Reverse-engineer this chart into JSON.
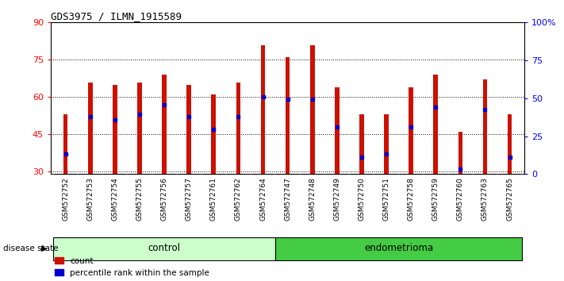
{
  "title": "GDS3975 / ILMN_1915589",
  "samples": [
    "GSM572752",
    "GSM572753",
    "GSM572754",
    "GSM572755",
    "GSM572756",
    "GSM572757",
    "GSM572761",
    "GSM572762",
    "GSM572764",
    "GSM572747",
    "GSM572748",
    "GSM572749",
    "GSM572750",
    "GSM572751",
    "GSM572758",
    "GSM572759",
    "GSM572760",
    "GSM572763",
    "GSM572765"
  ],
  "bar_tops": [
    53,
    66,
    65,
    66,
    69,
    65,
    61,
    66,
    81,
    76,
    81,
    64,
    53,
    53,
    64,
    69,
    46,
    67,
    53
  ],
  "blue_markers": [
    37,
    52,
    51,
    53,
    57,
    52,
    47,
    52,
    60,
    59,
    59,
    48,
    36,
    37,
    48,
    56,
    31,
    55,
    36
  ],
  "bar_bottom": 29,
  "ylim_left": [
    29,
    90
  ],
  "ylim_right": [
    0,
    100
  ],
  "yticks_left": [
    30,
    45,
    60,
    75,
    90
  ],
  "yticks_right": [
    0,
    25,
    50,
    75,
    100
  ],
  "ytick_labels_right": [
    "0",
    "25",
    "50",
    "75",
    "100%"
  ],
  "control_count": 9,
  "endometrioma_count": 10,
  "bar_color": "#CC1100",
  "blue_color": "#0000CC",
  "control_bg": "#CCFFCC",
  "endometrioma_bg": "#44CC44",
  "tick_label_bg": "#C8C8C8",
  "group_label_control": "control",
  "group_label_endometrioma": "endometrioma",
  "disease_state_label": "disease state",
  "legend_count": "count",
  "legend_percentile": "percentile rank within the sample",
  "bar_width": 0.18
}
